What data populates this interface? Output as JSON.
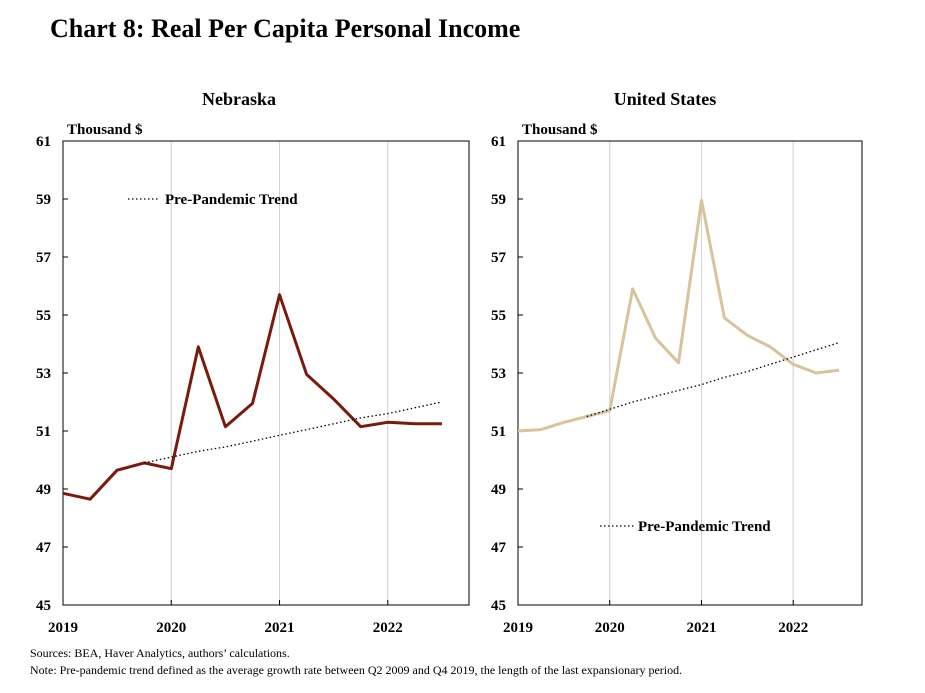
{
  "title": "Chart 8: Real Per Capita Personal Income",
  "footnotes": {
    "sources": "Sources: BEA,  Haver Analytics, authors’ calculations.",
    "note": "Note: Pre-pandemic  trend defined as the average growth rate between Q2 2009  and Q4 2019,  the length of the last expansionary period."
  },
  "colors": {
    "nebraska_line": "#7a1a0c",
    "us_line": "#d9c39a",
    "trend_line": "#000000",
    "gridline": "#d0d0d0"
  },
  "chart_data": [
    {
      "type": "line",
      "title": "Nebraska",
      "ylabel": "Thousand $",
      "ylim": [
        45,
        61
      ],
      "yticks": [
        45,
        47,
        49,
        51,
        53,
        55,
        57,
        59,
        61
      ],
      "xlim": [
        2019.0,
        2022.75
      ],
      "xticks": [
        2019,
        2020,
        2021,
        2022
      ],
      "xtick_labels": [
        "2019",
        "2020",
        "2021",
        "2022"
      ],
      "grid": "vertical",
      "legend": "upper-left",
      "series": [
        {
          "name": "",
          "style": "solid",
          "x": [
            2019.0,
            2019.25,
            2019.5,
            2019.75,
            2020.0,
            2020.25,
            2020.5,
            2020.75,
            2021.0,
            2021.25,
            2021.5,
            2021.75,
            2022.0,
            2022.25,
            2022.5
          ],
          "values": [
            48.85,
            48.65,
            49.65,
            49.9,
            49.7,
            53.9,
            51.15,
            51.95,
            55.7,
            52.95,
            52.1,
            51.15,
            51.3,
            51.25,
            51.25
          ]
        },
        {
          "name": "Pre-Pandemic Trend",
          "style": "dotted",
          "x": [
            2019.75,
            2020.0,
            2020.25,
            2020.5,
            2020.75,
            2021.0,
            2021.25,
            2021.5,
            2021.75,
            2022.0,
            2022.25,
            2022.5
          ],
          "values": [
            49.9,
            50.1,
            50.3,
            50.45,
            50.65,
            50.85,
            51.05,
            51.25,
            51.45,
            51.6,
            51.8,
            52.0
          ]
        }
      ]
    },
    {
      "type": "line",
      "title": "United States",
      "ylabel": "Thousand $",
      "ylim": [
        45,
        61
      ],
      "yticks": [
        45,
        47,
        49,
        51,
        53,
        55,
        57,
        59,
        61
      ],
      "xlim": [
        2019.0,
        2022.75
      ],
      "xticks": [
        2019,
        2020,
        2021,
        2022
      ],
      "xtick_labels": [
        "2019",
        "2020",
        "2021",
        "2022"
      ],
      "grid": "vertical",
      "legend": "lower-center",
      "series": [
        {
          "name": "",
          "style": "solid",
          "x": [
            2019.0,
            2019.25,
            2019.5,
            2019.75,
            2020.0,
            2020.25,
            2020.5,
            2020.75,
            2021.0,
            2021.25,
            2021.5,
            2021.75,
            2022.0,
            2022.25,
            2022.5
          ],
          "values": [
            51.0,
            51.05,
            51.3,
            51.5,
            51.7,
            55.9,
            54.2,
            53.35,
            58.95,
            54.9,
            54.3,
            53.9,
            53.3,
            53.0,
            53.1
          ]
        },
        {
          "name": "Pre-Pandemic Trend",
          "style": "dotted",
          "x": [
            2019.75,
            2020.0,
            2020.25,
            2020.5,
            2020.75,
            2021.0,
            2021.25,
            2021.5,
            2021.75,
            2022.0,
            2022.25,
            2022.5
          ],
          "values": [
            51.5,
            51.75,
            52.0,
            52.2,
            52.4,
            52.6,
            52.85,
            53.05,
            53.3,
            53.55,
            53.8,
            54.05
          ]
        }
      ]
    }
  ]
}
